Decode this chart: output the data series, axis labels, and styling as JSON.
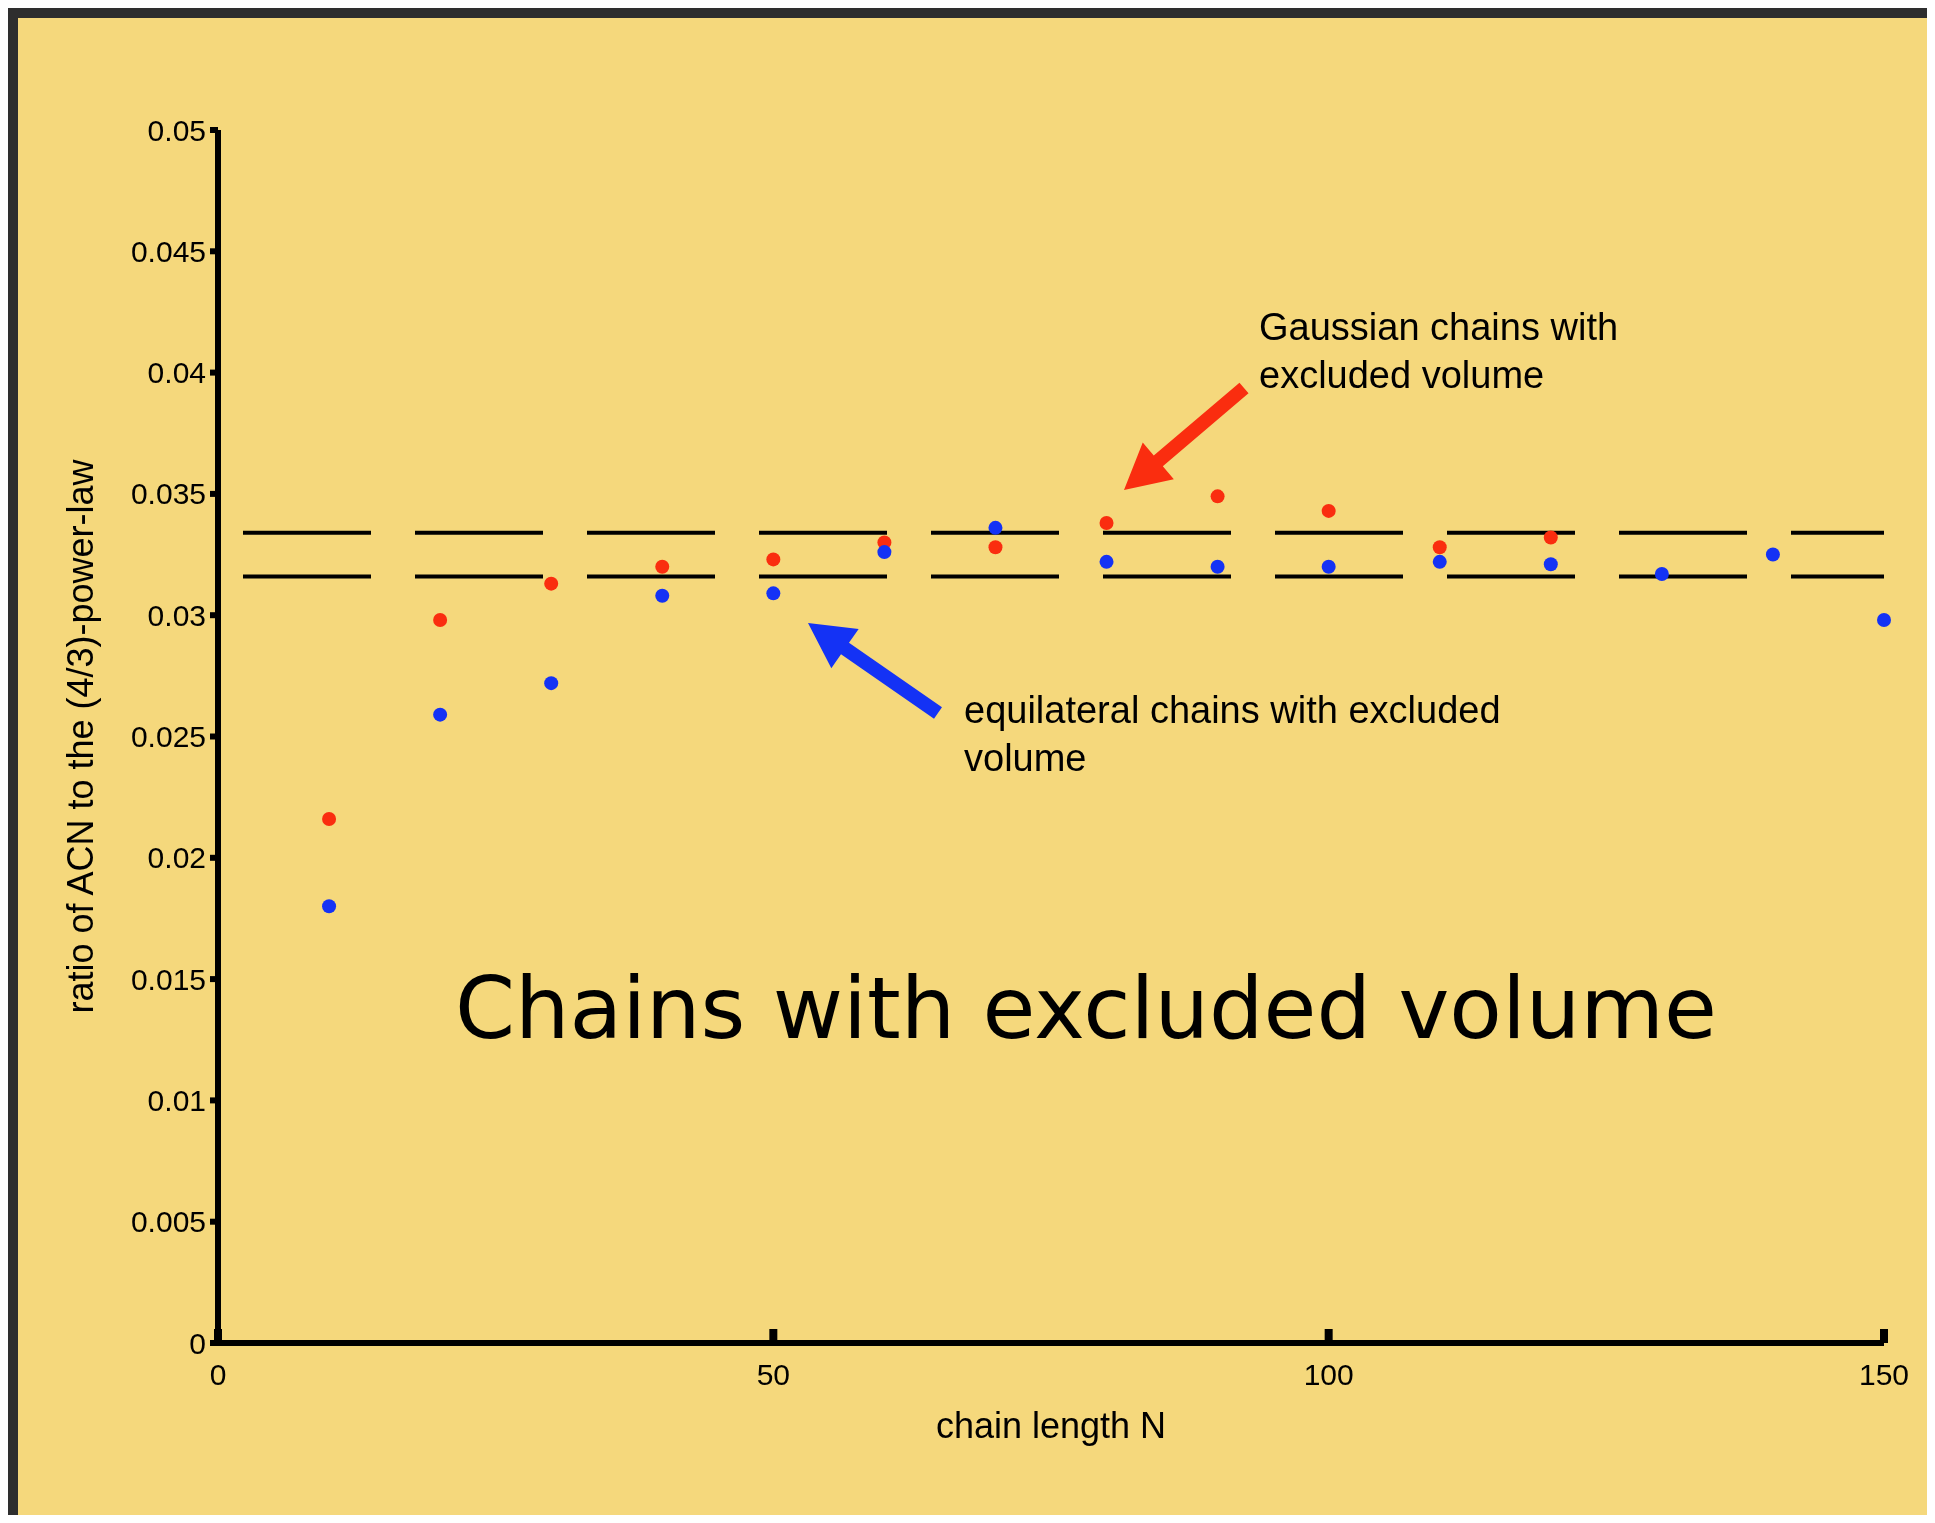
{
  "chart_data": {
    "type": "scatter",
    "title": "Chains with excluded volume",
    "xlabel": "chain length N",
    "ylabel": "ratio of ACN to the (4/3)-power-law",
    "xlim": [
      0,
      150
    ],
    "xticks": [
      0,
      50,
      100,
      150
    ],
    "ylim": [
      0,
      0.05
    ],
    "yticks": [
      0,
      0.005,
      0.01,
      0.015,
      0.02,
      0.025,
      0.03,
      0.035,
      0.04,
      0.045,
      0.05
    ],
    "grid": false,
    "marker": "circle",
    "series": [
      {
        "color": "#fa2d0f",
        "x": [
          10,
          20,
          30,
          40,
          50,
          60,
          70,
          80,
          90,
          100,
          110,
          120
        ],
        "values": [
          0.0216,
          0.0298,
          0.0313,
          0.032,
          0.0323,
          0.033,
          0.0328,
          0.0338,
          0.0349,
          0.0343,
          0.0328,
          0.0332
        ]
      },
      {
        "color": "#1432f5",
        "x": [
          10,
          20,
          30,
          40,
          50,
          60,
          70,
          80,
          90,
          100,
          110,
          120,
          130,
          140,
          150
        ],
        "values": [
          0.018,
          0.0259,
          0.0272,
          0.0308,
          0.0309,
          0.0326,
          0.0336,
          0.0322,
          0.032,
          0.032,
          0.0322,
          0.0321,
          0.0317,
          0.0325,
          0.0298
        ]
      }
    ],
    "ref_lines": [
      {
        "axis": "y",
        "value": 0.0334,
        "label": null,
        "color": "#000000",
        "line_style": "dashed"
      },
      {
        "axis": "y",
        "value": 0.0316,
        "label": null,
        "color": "#000000",
        "line_style": "dashed"
      }
    ],
    "annotations": [
      "Gaussian chains with\nexcluded volume",
      "equilateral chains with excluded\nvolume"
    ]
  }
}
